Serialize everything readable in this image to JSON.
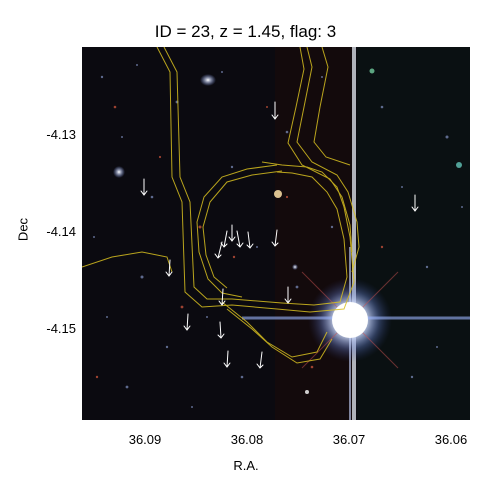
{
  "title": "ID = 23, z = 1.45, flag: 3",
  "x_axis": {
    "label": "R.A.",
    "ticks": [
      "36.09",
      "36.08",
      "36.07",
      "36.06"
    ]
  },
  "y_axis": {
    "label": "Dec",
    "ticks": [
      "-4.13",
      "-4.14",
      "-4.15"
    ]
  },
  "colors": {
    "contour": "#d8c020",
    "marker": "#ffffff",
    "sky": "#0b0a10"
  },
  "image": {
    "description_icon": "false-color-sky-cutout"
  }
}
